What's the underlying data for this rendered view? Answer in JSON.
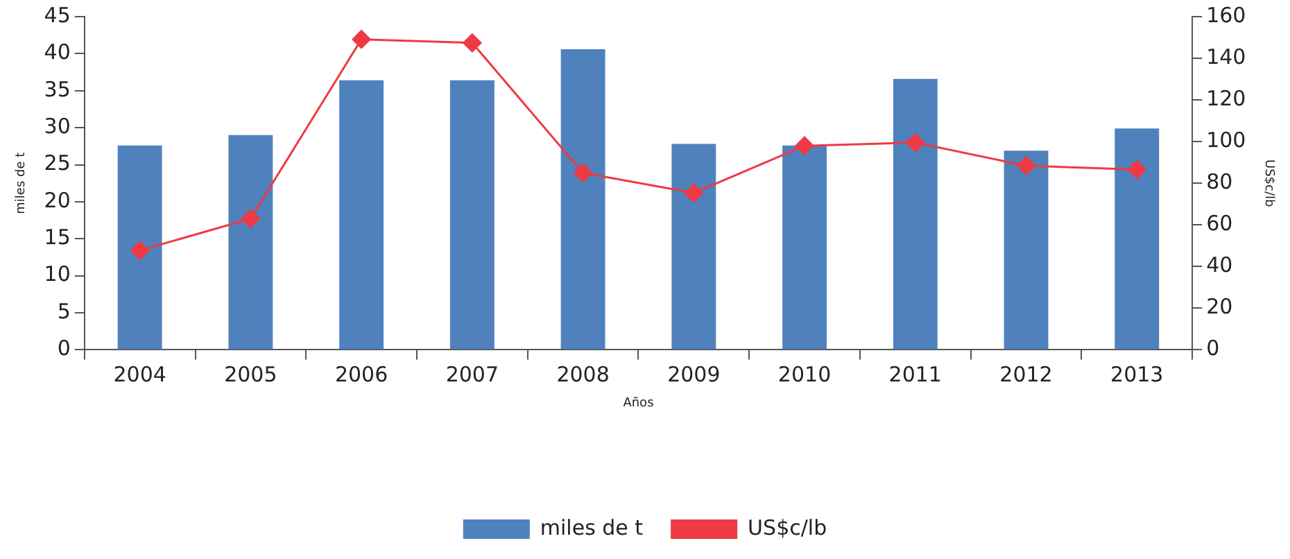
{
  "chart_data": {
    "type": "bar",
    "xlabel": "Años",
    "ylabel": "miles de t",
    "y2label": "US$c/lb",
    "categories": [
      "2004",
      "2005",
      "2006",
      "2007",
      "2008",
      "2009",
      "2010",
      "2011",
      "2012",
      "2013"
    ],
    "series": [
      {
        "name": "miles de t",
        "color": "#4f81bd",
        "values": [
          27.6,
          29.0,
          36.4,
          36.4,
          40.6,
          27.8,
          27.6,
          36.6,
          26.9,
          29.9
        ]
      },
      {
        "name": "US$c/lb",
        "type": "line",
        "axis": "y2",
        "color": "#ee3a43",
        "marker": "diamond",
        "values": [
          47.7,
          63.0,
          149.1,
          147.4,
          85.0,
          75.3,
          98.0,
          99.5,
          88.4,
          86.6
        ]
      }
    ],
    "ylim": [
      0,
      45
    ],
    "yticks": [
      0,
      5,
      10,
      15,
      20,
      25,
      30,
      35,
      40,
      45
    ],
    "y2lim": [
      0,
      160
    ],
    "y2ticks": [
      0,
      20,
      40,
      60,
      80,
      100,
      120,
      140,
      160
    ],
    "grid": false,
    "legend": "bottom"
  }
}
